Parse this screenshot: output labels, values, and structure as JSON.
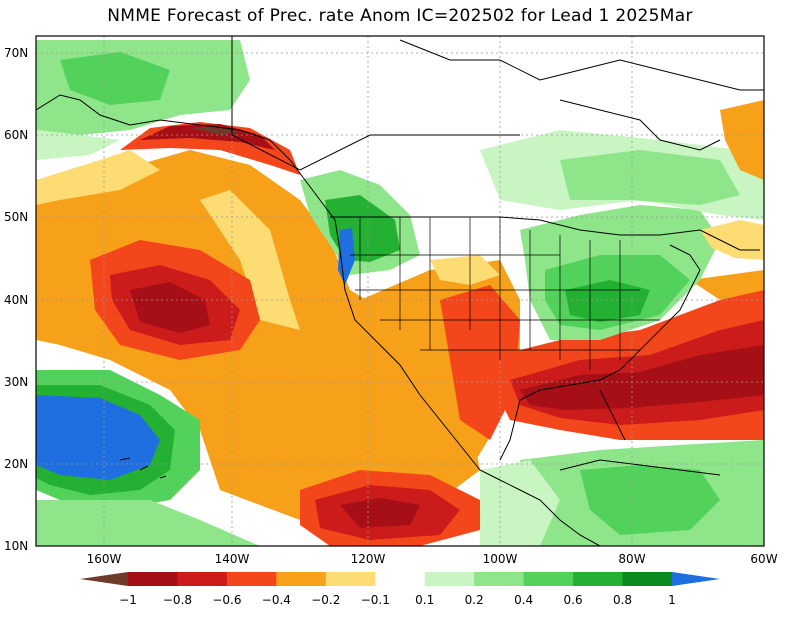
{
  "title": "NMME Forecast of Prec. rate Anom IC=202502 for Lead 1 2025Mar",
  "lat_labels": [
    "70N",
    "60N",
    "50N",
    "40N",
    "30N",
    "20N",
    "10N"
  ],
  "lon_labels": [
    "160W",
    "140W",
    "120W",
    "100W",
    "80W",
    "60W"
  ],
  "colorbar": {
    "labels": [
      "−1",
      "−0.8",
      "−0.6",
      "−0.4",
      "−0.2",
      "−0.1",
      "0.1",
      "0.2",
      "0.4",
      "0.6",
      "0.8",
      "1"
    ],
    "colors": [
      "#6e3b2a",
      "#a50f15",
      "#cc1b1b",
      "#f4461b",
      "#f7a11a",
      "#fddc74",
      "#ffffff",
      "#c9f5c2",
      "#8fe58a",
      "#52d25a",
      "#24b032",
      "#0a8a1f",
      "#1f6fe0"
    ]
  },
  "colors": {
    "neutral": "#ffffff",
    "dry_light": "#fddc74",
    "dry_mid": "#f7a11a",
    "dry_strong": "#f4461b",
    "dry_stronger": "#cc1b1b",
    "dry_max": "#a50f15",
    "dry_extreme": "#6e3b2a",
    "wet_light": "#c9f5c2",
    "wet_mid": "#8fe58a",
    "wet_strong": "#52d25a",
    "wet_stronger": "#24b032",
    "wet_max": "#0a8a1f",
    "wet_extreme": "#1f6fe0"
  }
}
